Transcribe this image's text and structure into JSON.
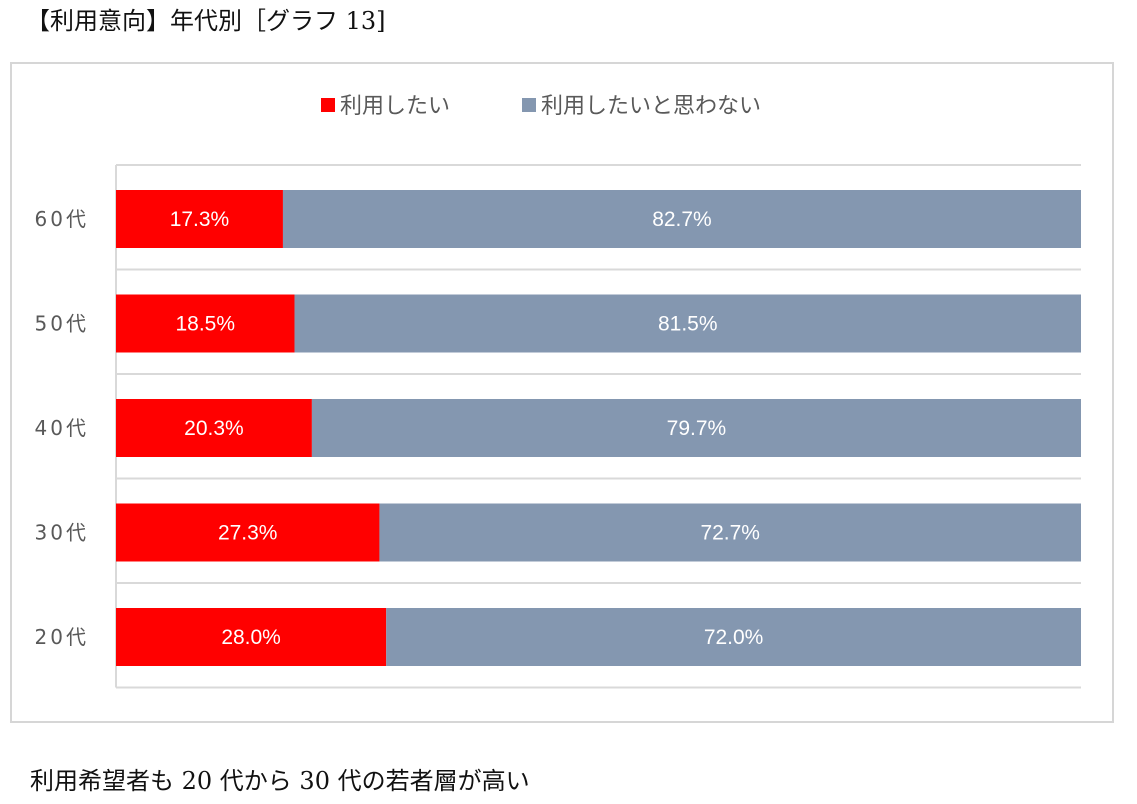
{
  "page": {
    "title": "【利用意向】年代別［グラフ 13]",
    "caption": "利用希望者も 20 代から 30 代の若者層が高い"
  },
  "chart_data": {
    "type": "bar",
    "orientation": "horizontal",
    "stacked": "percent",
    "title": "",
    "xlabel": "",
    "ylabel": "",
    "xlim": [
      0,
      100
    ],
    "grid": true,
    "legend_position": "top",
    "categories": [
      "60代",
      "50代",
      "40代",
      "30代",
      "20代"
    ],
    "series": [
      {
        "name": "利用したい",
        "color": "#ff0000",
        "values": [
          17.3,
          18.5,
          20.3,
          27.3,
          28.0
        ],
        "labels": [
          "17.3%",
          "18.5%",
          "20.3%",
          "27.3%",
          "28.0%"
        ]
      },
      {
        "name": "利用したいと思わない",
        "color": "#8497b0",
        "values": [
          82.7,
          81.5,
          79.7,
          72.7,
          72.0
        ],
        "labels": [
          "82.7%",
          "81.5%",
          "79.7%",
          "72.7%",
          "72.0%"
        ]
      }
    ]
  }
}
